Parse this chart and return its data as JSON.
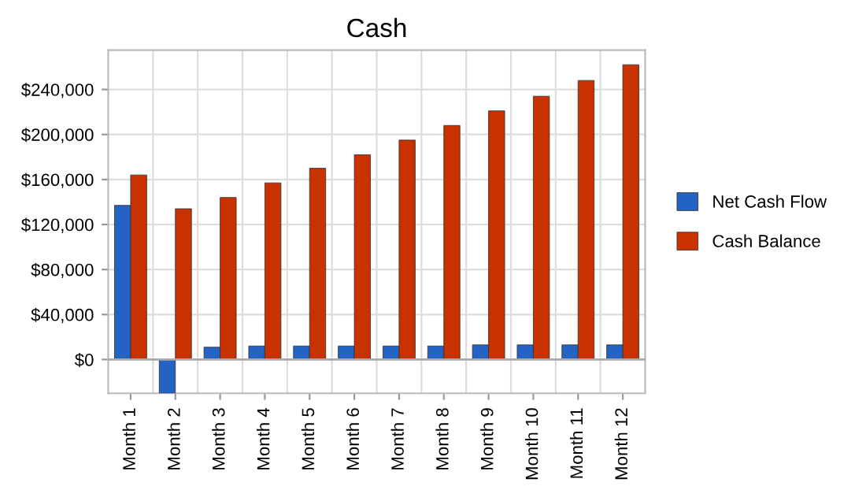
{
  "chart_data": {
    "type": "bar",
    "title": "Cash",
    "categories": [
      "Month 1",
      "Month 2",
      "Month 3",
      "Month 4",
      "Month 5",
      "Month 6",
      "Month 7",
      "Month 8",
      "Month 9",
      "Month 10",
      "Month 11",
      "Month 12"
    ],
    "series": [
      {
        "name": "Net Cash Flow",
        "color": "#2463c4",
        "values": [
          137000,
          -30000,
          11000,
          12000,
          12000,
          12000,
          12000,
          12000,
          13000,
          13000,
          13000,
          13000
        ]
      },
      {
        "name": "Cash Balance",
        "color": "#c83200",
        "values": [
          164000,
          134000,
          144000,
          157000,
          170000,
          182000,
          195000,
          208000,
          221000,
          234000,
          248000,
          262000
        ]
      }
    ],
    "ylim": [
      -30000,
      275000
    ],
    "yticks": [
      {
        "value": 0,
        "label": "$0"
      },
      {
        "value": 40000,
        "label": "$40,000"
      },
      {
        "value": 80000,
        "label": "$80,000"
      },
      {
        "value": 120000,
        "label": "$120,000"
      },
      {
        "value": 160000,
        "label": "$160,000"
      },
      {
        "value": 200000,
        "label": "$200,000"
      },
      {
        "value": 240000,
        "label": "$240,000"
      }
    ],
    "grid": true,
    "legend": "right"
  }
}
